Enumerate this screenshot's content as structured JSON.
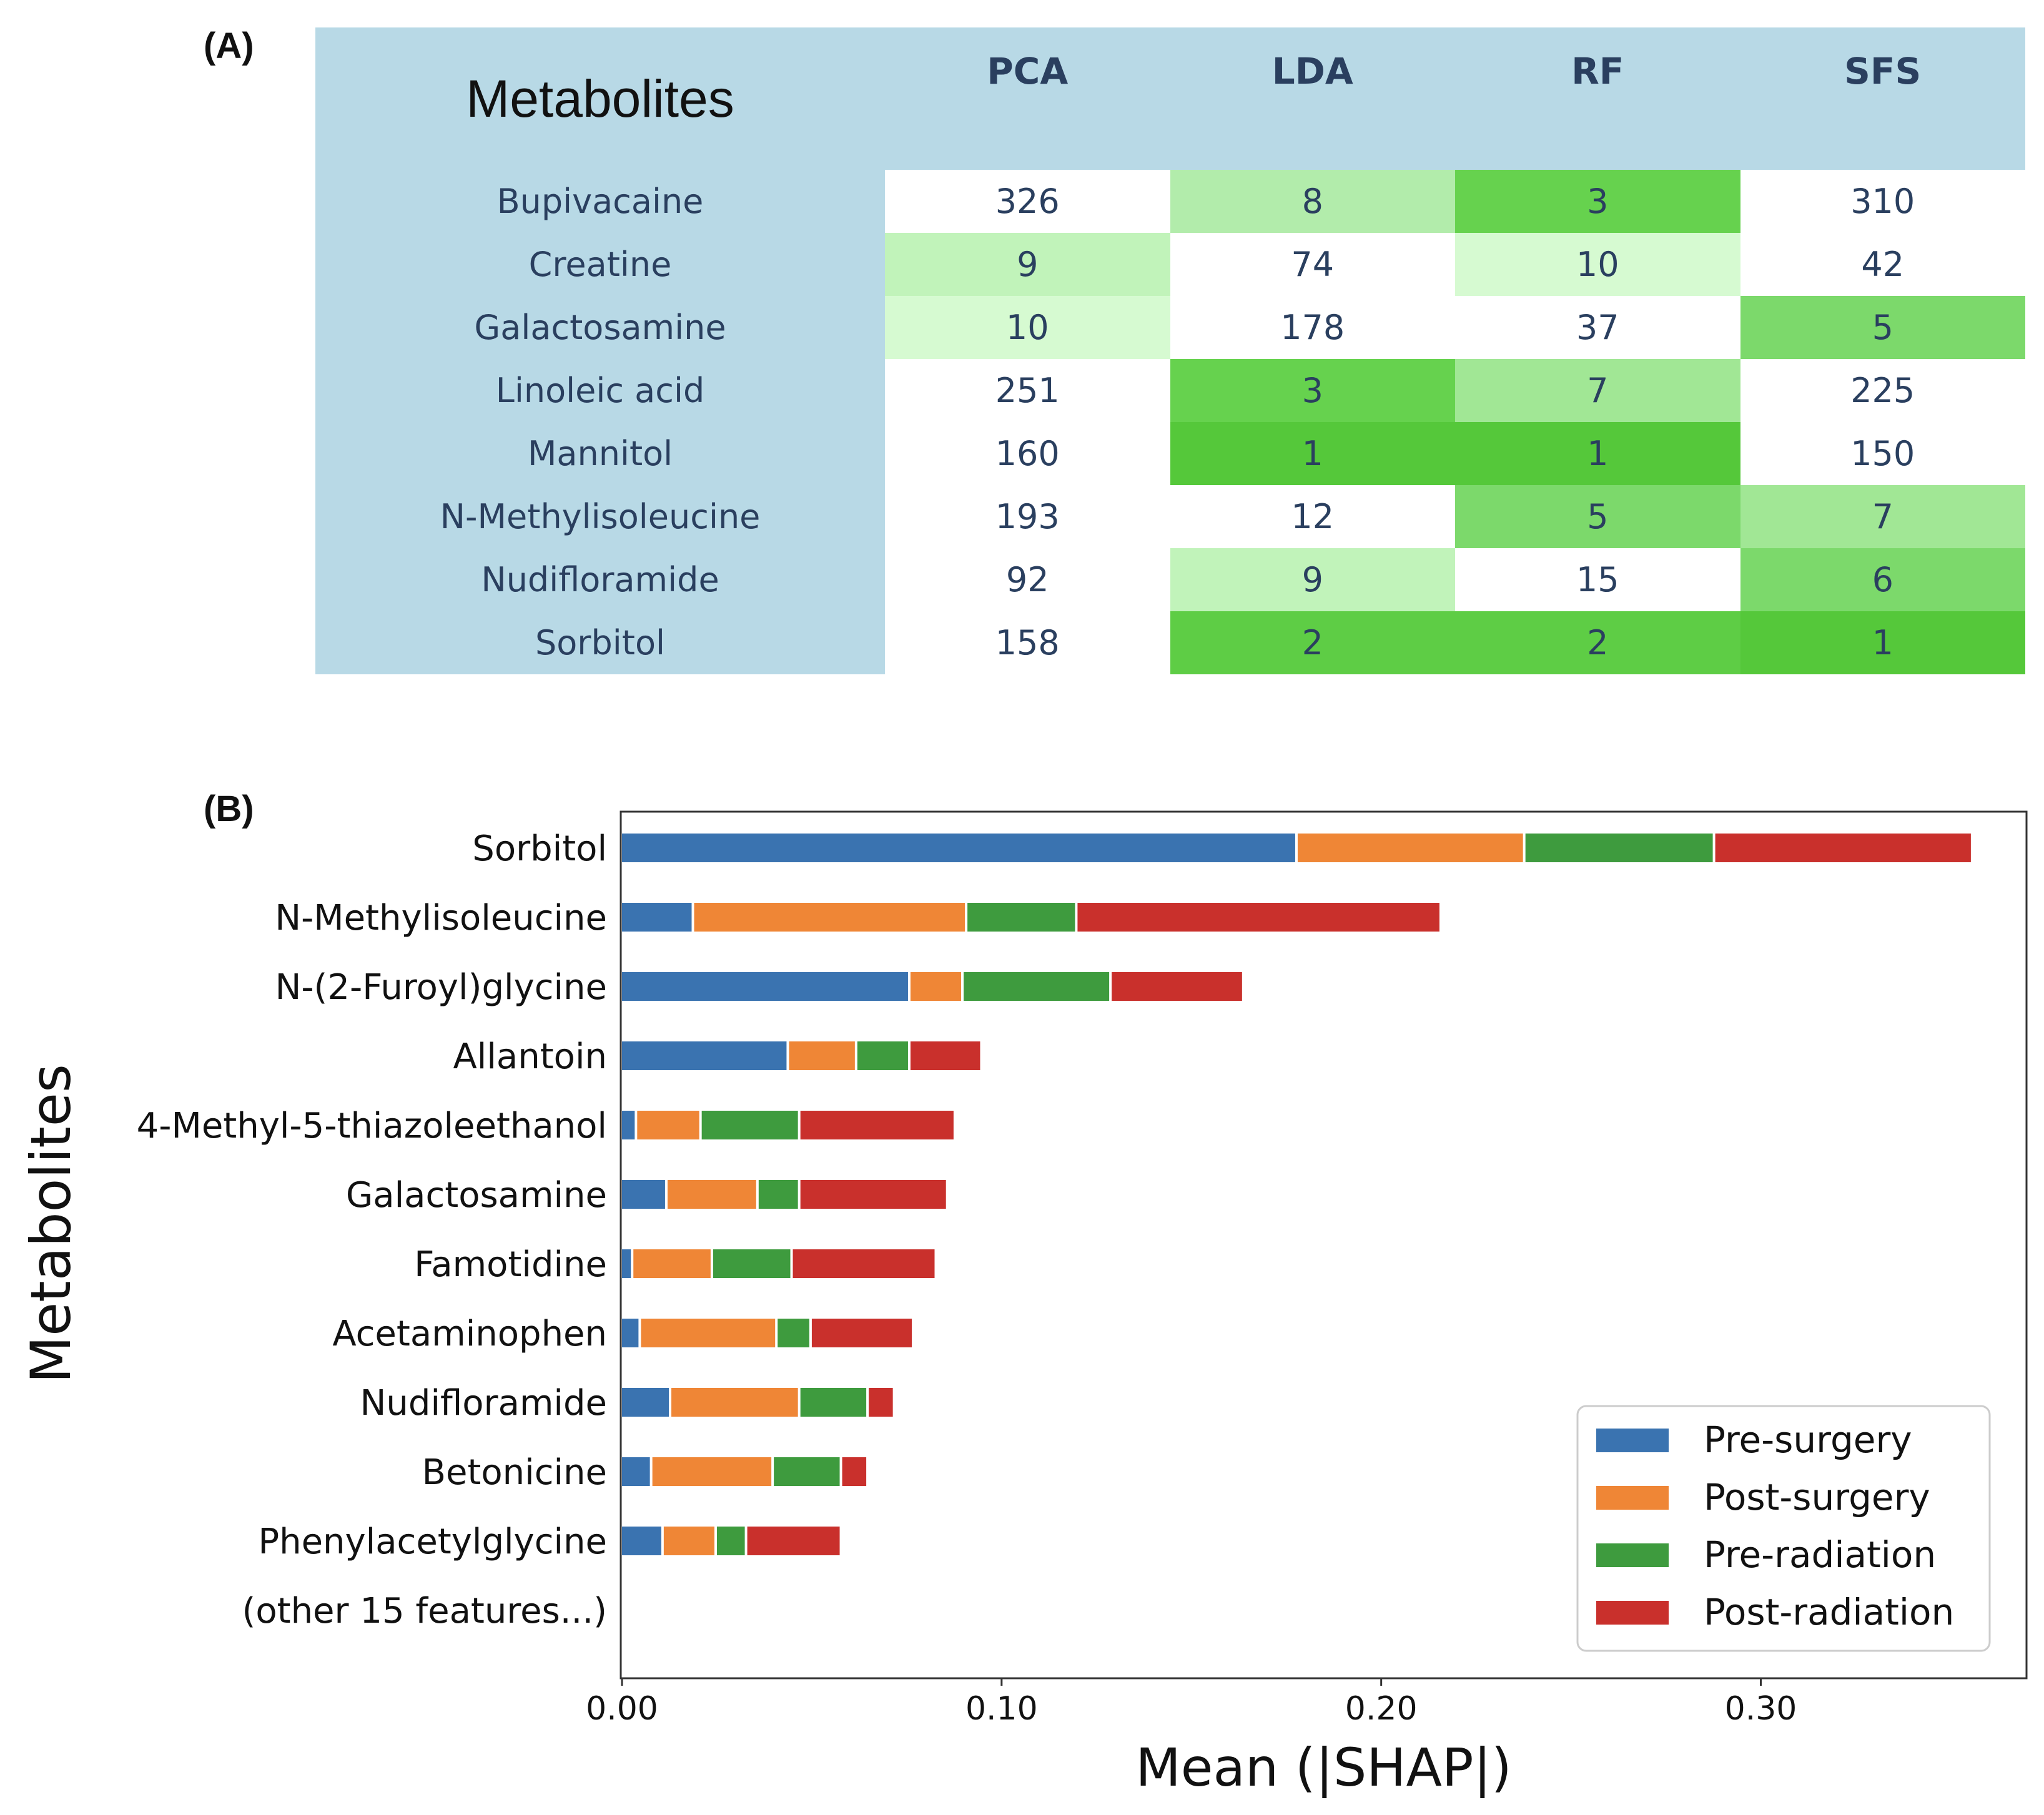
{
  "panel_a_label": "(A)",
  "panel_b_label": "(B)",
  "table": {
    "header_title": "Metabolites",
    "columns": [
      "PCA",
      "LDA",
      "RF",
      "SFS"
    ],
    "header_color": "#b8d9e6",
    "rows": [
      {
        "name": "Bupivacaine",
        "values": [
          "326",
          "8",
          "3",
          "310"
        ],
        "colors": [
          "#ffffff",
          "#b2ecab",
          "#66d24e",
          "#ffffff"
        ]
      },
      {
        "name": "Creatine",
        "values": [
          "9",
          "74",
          "10",
          "42"
        ],
        "colors": [
          "#c1f3ba",
          "#ffffff",
          "#d6fad1",
          "#ffffff"
        ]
      },
      {
        "name": "Galactosamine",
        "values": [
          "10",
          "178",
          "37",
          "5"
        ],
        "colors": [
          "#d6fad1",
          "#ffffff",
          "#ffffff",
          "#7cd96b"
        ]
      },
      {
        "name": "Linoleic acid",
        "values": [
          "251",
          "3",
          "7",
          "225"
        ],
        "colors": [
          "#ffffff",
          "#66d24e",
          "#a1e795",
          "#ffffff"
        ]
      },
      {
        "name": "Mannitol",
        "values": [
          "160",
          "1",
          "1",
          "150"
        ],
        "colors": [
          "#ffffff",
          "#55c83a",
          "#55c83a",
          "#ffffff"
        ]
      },
      {
        "name": "N-Methylisoleucine",
        "values": [
          "193",
          "12",
          "5",
          "7"
        ],
        "colors": [
          "#ffffff",
          "#ffffff",
          "#7cd96b",
          "#a1e795"
        ]
      },
      {
        "name": "Nudifloramide",
        "values": [
          "92",
          "9",
          "15",
          "6"
        ],
        "colors": [
          "#ffffff",
          "#c1f3ba",
          "#ffffff",
          "#7cd96b"
        ]
      },
      {
        "name": "Sorbitol",
        "values": [
          "158",
          "2",
          "2",
          "1"
        ],
        "colors": [
          "#ffffff",
          "#5ecd45",
          "#5ecd45",
          "#55c83a"
        ]
      }
    ]
  },
  "chart_data": {
    "type": "bar",
    "orientation": "horizontal",
    "stacked": true,
    "title": "",
    "xlabel": "Mean (|SHAP|)",
    "ylabel": "Metabolites",
    "xlim": [
      0,
      0.37
    ],
    "xticks": [
      "0.00",
      "0.10",
      "0.20",
      "0.30"
    ],
    "xtick_values": [
      0,
      0.1,
      0.2,
      0.3
    ],
    "legend_position": "bottom-right",
    "categories": [
      "Sorbitol",
      "N-Methylisoleucine",
      "N-(2-Furoyl)glycine",
      "Allantoin",
      "4-Methyl-5-thiazoleethanol",
      "Galactosamine",
      "Famotidine",
      "Acetaminophen",
      "Nudifloramide",
      "Betonicine",
      "Phenylacetylglycine",
      "(other 15 features...)"
    ],
    "series": [
      {
        "name": "Pre-surgery",
        "color": "#3a73b0",
        "values": [
          0.178,
          0.019,
          0.076,
          0.044,
          0.004,
          0.012,
          0.003,
          0.005,
          0.013,
          0.008,
          0.011,
          0
        ]
      },
      {
        "name": "Post-surgery",
        "color": "#ef8636",
        "values": [
          0.06,
          0.072,
          0.014,
          0.018,
          0.017,
          0.024,
          0.021,
          0.036,
          0.034,
          0.032,
          0.014,
          0
        ]
      },
      {
        "name": "Pre-radiation",
        "color": "#3e9b3e",
        "values": [
          0.05,
          0.029,
          0.039,
          0.014,
          0.026,
          0.011,
          0.021,
          0.009,
          0.018,
          0.018,
          0.008,
          0
        ]
      },
      {
        "name": "Post-radiation",
        "color": "#c9302c",
        "values": [
          0.068,
          0.096,
          0.035,
          0.019,
          0.041,
          0.039,
          0.038,
          0.027,
          0.007,
          0.007,
          0.025,
          0
        ]
      }
    ]
  }
}
